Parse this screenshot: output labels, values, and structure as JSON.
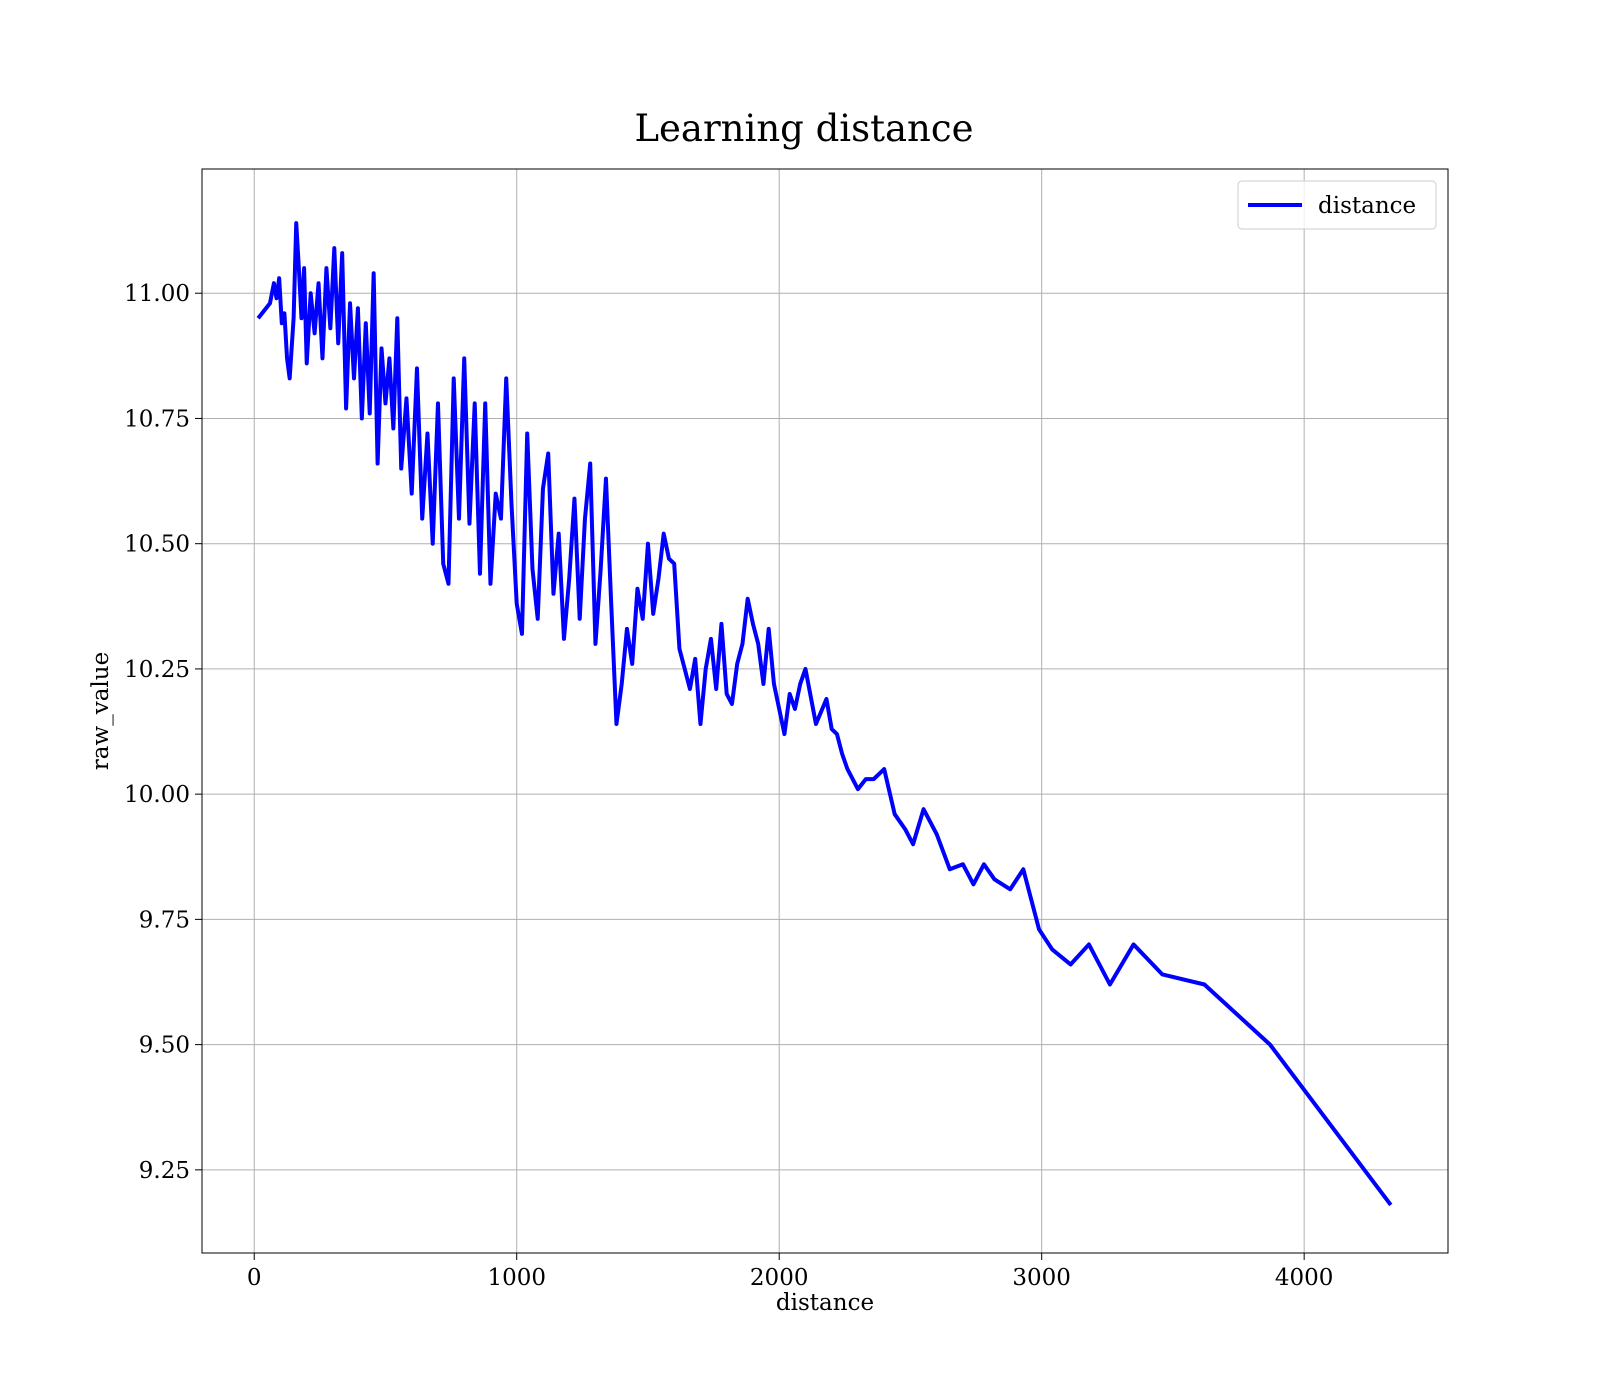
{
  "chart_data": {
    "type": "line",
    "title": "Learning distance",
    "xlabel": "distance",
    "ylabel": "raw_value",
    "legend": "upper right",
    "grid": true,
    "xlim": [
      -199,
      4548
    ],
    "ylim": [
      9.084,
      11.248
    ],
    "xticks": [
      0,
      1000,
      2000,
      3000,
      4000
    ],
    "yticks": [
      9.25,
      {
        "value": 9.5,
        "label": "9.50"
      },
      9.75,
      {
        "value": 10,
        "label": "10.00"
      },
      10.25,
      {
        "value": 10.5,
        "label": "10.50"
      },
      10.75,
      {
        "value": 11,
        "label": "11.00"
      }
    ],
    "series": [
      {
        "name": "distance",
        "color": "#0000ff",
        "x": [
          15,
          60,
          75,
          85,
          95,
          105,
          115,
          125,
          135,
          150,
          160,
          170,
          180,
          190,
          200,
          215,
          230,
          245,
          260,
          275,
          290,
          305,
          320,
          335,
          350,
          365,
          380,
          395,
          410,
          425,
          440,
          455,
          470,
          485,
          500,
          515,
          530,
          545,
          560,
          580,
          600,
          620,
          640,
          660,
          680,
          700,
          720,
          740,
          760,
          780,
          800,
          820,
          840,
          860,
          880,
          900,
          920,
          940,
          960,
          980,
          1000,
          1020,
          1040,
          1060,
          1080,
          1100,
          1120,
          1140,
          1160,
          1180,
          1200,
          1220,
          1240,
          1260,
          1280,
          1300,
          1320,
          1340,
          1360,
          1380,
          1400,
          1420,
          1440,
          1460,
          1480,
          1500,
          1520,
          1540,
          1560,
          1580,
          1600,
          1620,
          1640,
          1660,
          1680,
          1700,
          1720,
          1740,
          1760,
          1780,
          1800,
          1820,
          1840,
          1860,
          1880,
          1900,
          1920,
          1940,
          1960,
          1980,
          2000,
          2020,
          2040,
          2060,
          2080,
          2100,
          2140,
          2180,
          2200,
          2220,
          2240,
          2260,
          2300,
          2330,
          2360,
          2400,
          2440,
          2480,
          2510,
          2550,
          2600,
          2650,
          2700,
          2740,
          2780,
          2820,
          2880,
          2930,
          2990,
          3040,
          3110,
          3180,
          3260,
          3350,
          3460,
          3620,
          3870,
          4330
        ],
        "values": [
          10.95,
          10.98,
          11.02,
          10.99,
          11.03,
          10.94,
          10.96,
          10.87,
          10.83,
          10.95,
          11.14,
          11.05,
          10.95,
          11.05,
          10.86,
          11.0,
          10.92,
          11.02,
          10.87,
          11.05,
          10.93,
          11.09,
          10.9,
          11.08,
          10.77,
          10.98,
          10.83,
          10.97,
          10.75,
          10.94,
          10.76,
          11.04,
          10.66,
          10.89,
          10.78,
          10.87,
          10.73,
          10.95,
          10.65,
          10.79,
          10.6,
          10.85,
          10.55,
          10.72,
          10.5,
          10.78,
          10.46,
          10.42,
          10.83,
          10.55,
          10.87,
          10.54,
          10.78,
          10.44,
          10.78,
          10.42,
          10.6,
          10.55,
          10.83,
          10.58,
          10.38,
          10.32,
          10.72,
          10.45,
          10.35,
          10.61,
          10.68,
          10.4,
          10.52,
          10.31,
          10.43,
          10.59,
          10.35,
          10.55,
          10.66,
          10.3,
          10.45,
          10.63,
          10.38,
          10.14,
          10.22,
          10.33,
          10.26,
          10.41,
          10.35,
          10.5,
          10.36,
          10.43,
          10.52,
          10.47,
          10.46,
          10.29,
          10.25,
          10.21,
          10.27,
          10.14,
          10.25,
          10.31,
          10.21,
          10.34,
          10.2,
          10.18,
          10.26,
          10.3,
          10.39,
          10.34,
          10.3,
          10.22,
          10.33,
          10.22,
          10.17,
          10.12,
          10.2,
          10.17,
          10.22,
          10.25,
          10.14,
          10.19,
          10.13,
          10.12,
          10.08,
          10.05,
          10.01,
          10.03,
          10.03,
          10.05,
          9.96,
          9.93,
          9.9,
          9.97,
          9.92,
          9.85,
          9.86,
          9.82,
          9.86,
          9.83,
          9.81,
          9.85,
          9.73,
          9.69,
          9.66,
          9.7,
          9.62,
          9.7,
          9.64,
          9.62,
          9.5,
          9.18
        ]
      }
    ]
  }
}
